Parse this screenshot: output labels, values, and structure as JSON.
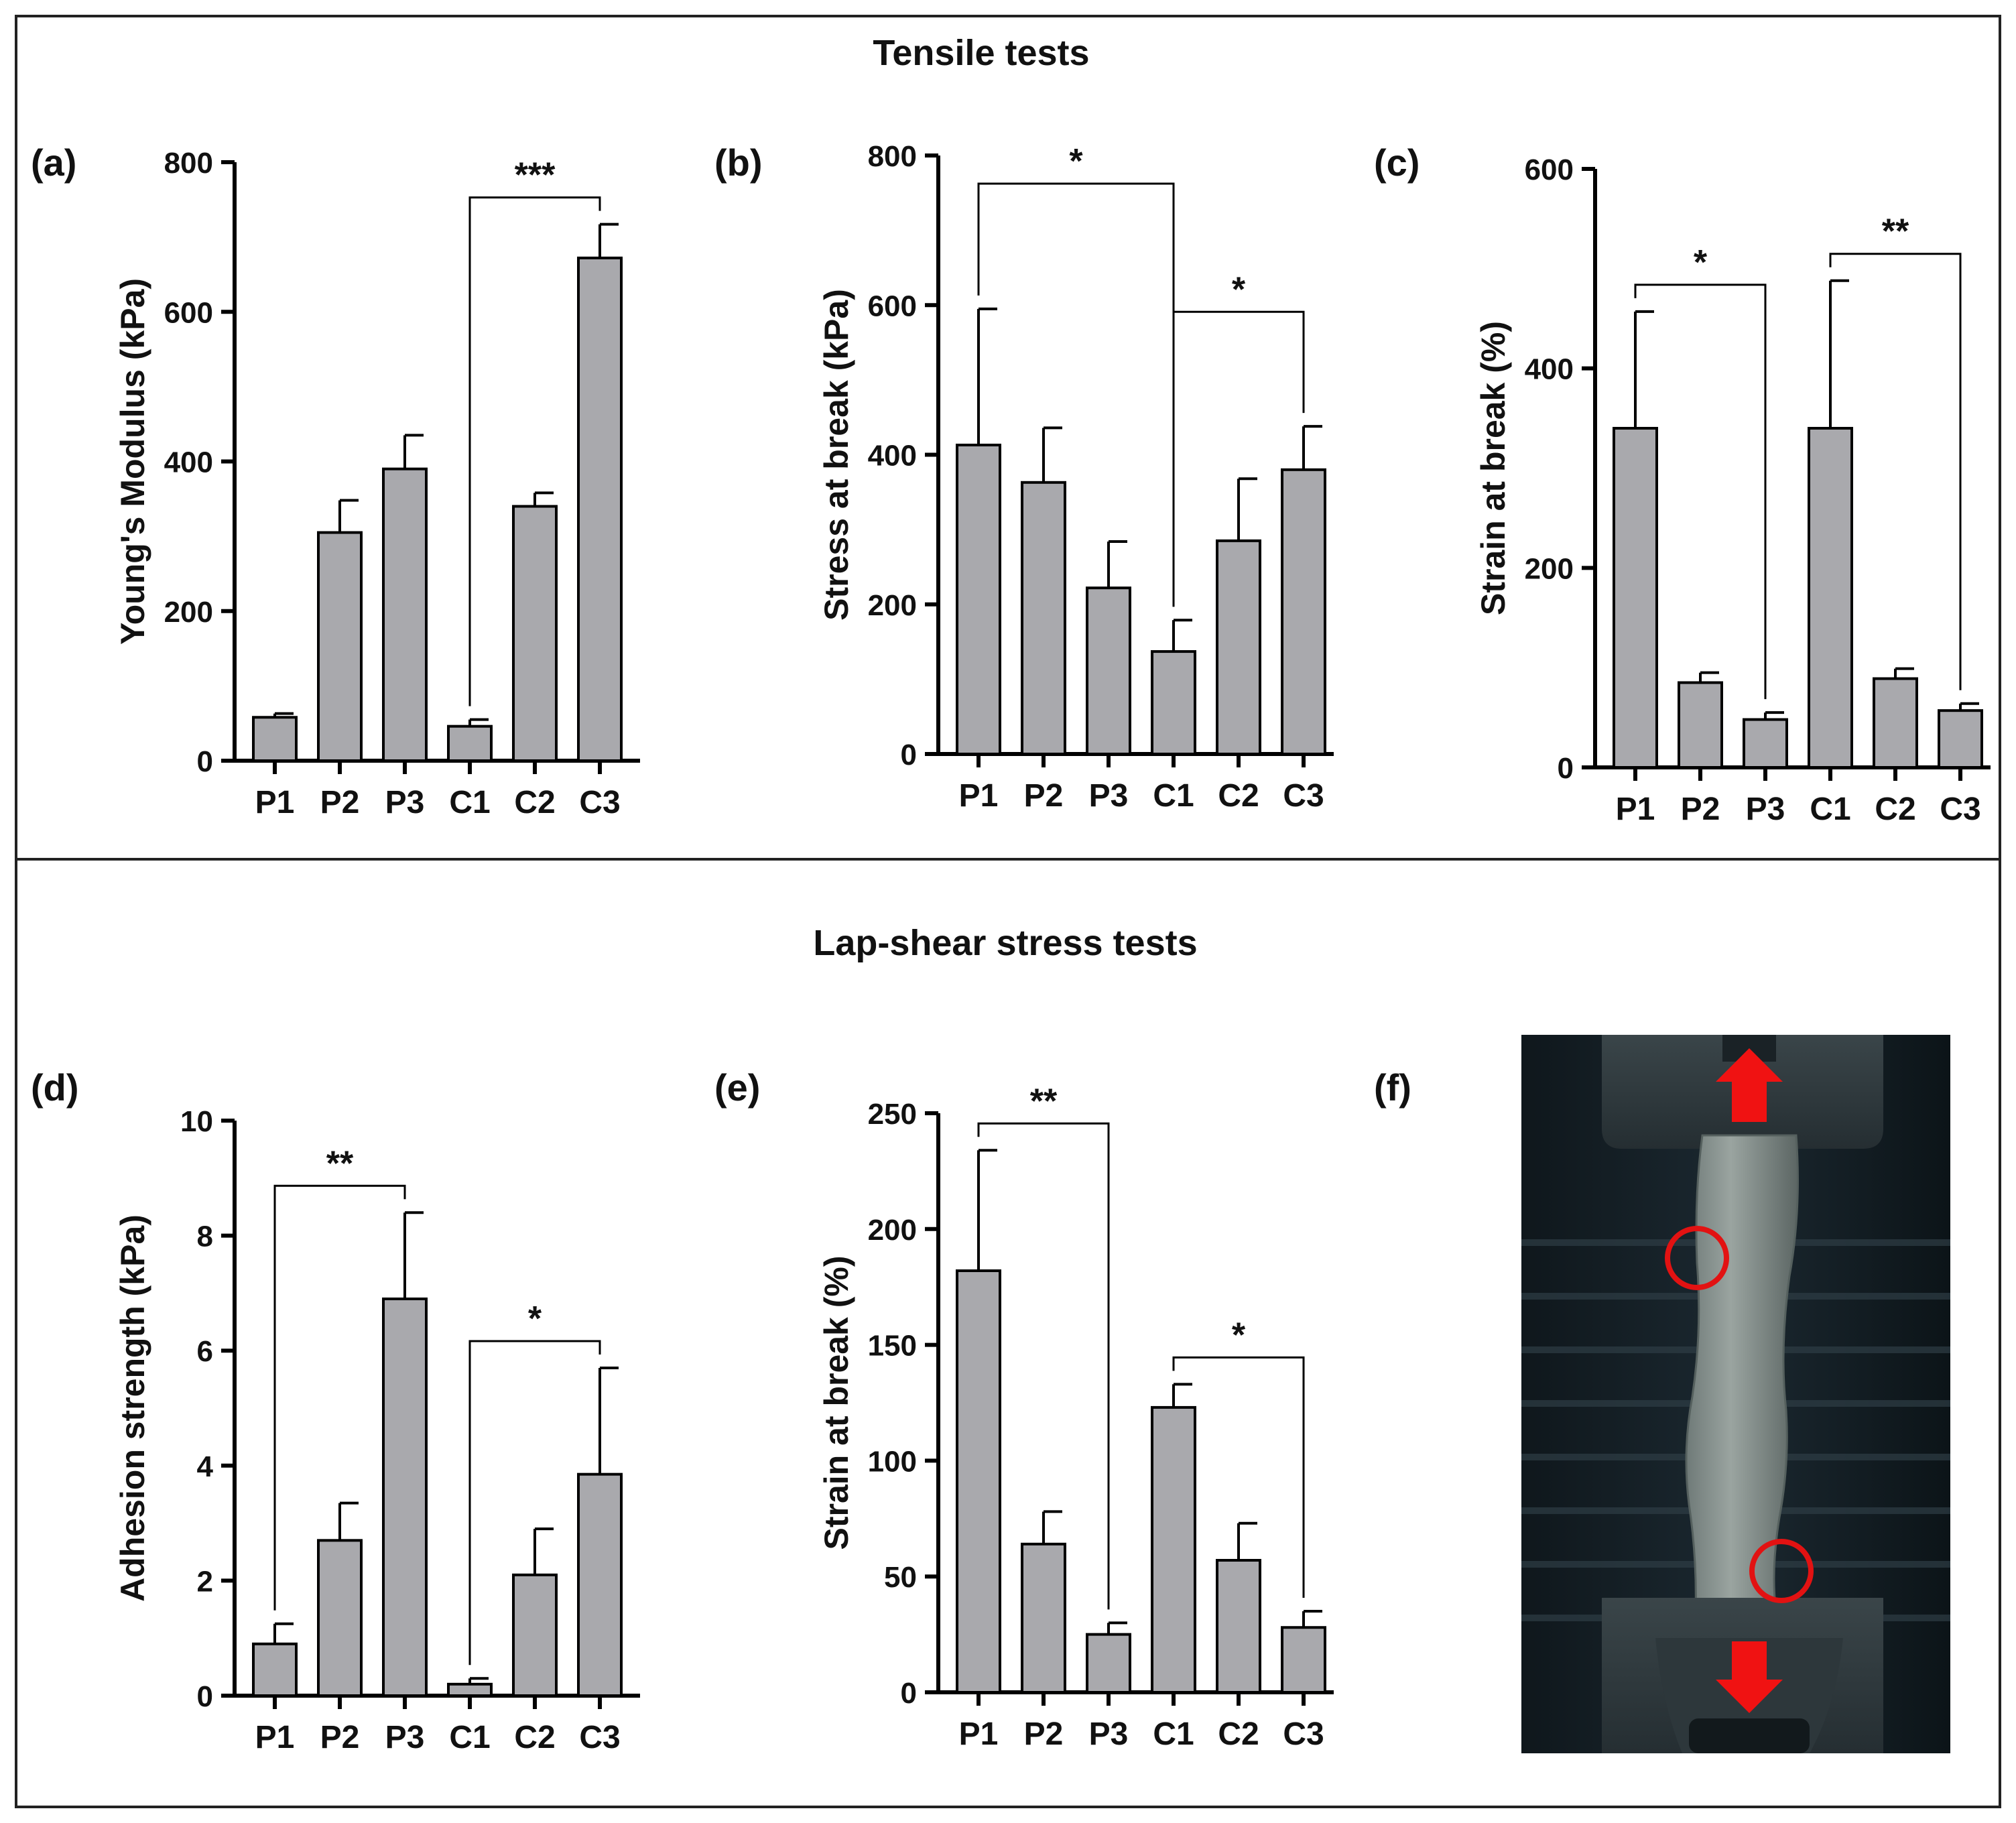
{
  "figure": {
    "sections": [
      {
        "title": "Tensile tests"
      },
      {
        "title": "Lap-shear stress tests"
      }
    ],
    "photo_panel": {
      "letter": "(f)"
    }
  },
  "chart_data": [
    {
      "panel": "(a)",
      "type": "bar",
      "title": "",
      "xlabel": "",
      "ylabel": "Young's Modulus (kPa)",
      "categories": [
        "P1",
        "P2",
        "P3",
        "C1",
        "C2",
        "C3"
      ],
      "values": [
        58,
        305,
        390,
        46,
        340,
        672
      ],
      "errors": [
        5,
        43,
        45,
        9,
        18,
        45
      ],
      "ylim": [
        0,
        800
      ],
      "yticks": [
        "0",
        "200",
        "400",
        "600",
        "800"
      ],
      "significance": [
        {
          "from": "C1",
          "to": "C3",
          "label": "***"
        }
      ],
      "bar_color": "#a9a9ad"
    },
    {
      "panel": "(b)",
      "type": "bar",
      "title": "",
      "xlabel": "",
      "ylabel": "Stress at break (kPa)",
      "categories": [
        "P1",
        "P2",
        "P3",
        "C1",
        "C2",
        "C3"
      ],
      "values": [
        413,
        363,
        222,
        137,
        285,
        380
      ],
      "errors": [
        182,
        73,
        62,
        42,
        83,
        58
      ],
      "ylim": [
        0,
        800
      ],
      "yticks": [
        "0",
        "200",
        "400",
        "600",
        "800"
      ],
      "significance": [
        {
          "from": "P1",
          "to": "C1",
          "label": "*"
        },
        {
          "from": "C1",
          "to": "C3",
          "label": "*"
        }
      ],
      "bar_color": "#a9a9ad"
    },
    {
      "panel": "(c)",
      "type": "bar",
      "title": "",
      "xlabel": "",
      "ylabel": "Strain at break (%)",
      "categories": [
        "P1",
        "P2",
        "P3",
        "C1",
        "C2",
        "C3"
      ],
      "values": [
        340,
        85,
        48,
        340,
        89,
        57
      ],
      "errors": [
        117,
        10,
        7,
        148,
        10,
        7
      ],
      "ylim": [
        0,
        600
      ],
      "yticks": [
        "0",
        "200",
        "400",
        "600"
      ],
      "significance": [
        {
          "from": "P1",
          "to": "P3",
          "label": "*"
        },
        {
          "from": "C1",
          "to": "C3",
          "label": "**"
        }
      ],
      "bar_color": "#a9a9ad"
    },
    {
      "panel": "(d)",
      "type": "bar",
      "title": "",
      "xlabel": "",
      "ylabel": "Adhesion strength (kPa)",
      "categories": [
        "P1",
        "P2",
        "P3",
        "C1",
        "C2",
        "C3"
      ],
      "values": [
        0.9,
        2.7,
        6.9,
        0.2,
        2.1,
        3.85
      ],
      "errors": [
        0.35,
        0.65,
        1.5,
        0.1,
        0.8,
        1.85
      ],
      "ylim": [
        0,
        10
      ],
      "yticks": [
        "0",
        "2",
        "4",
        "6",
        "8",
        "10"
      ],
      "significance": [
        {
          "from": "P1",
          "to": "P3",
          "label": "**"
        },
        {
          "from": "C1",
          "to": "C3",
          "label": "*"
        }
      ],
      "bar_color": "#a9a9ad"
    },
    {
      "panel": "(e)",
      "type": "bar",
      "title": "",
      "xlabel": "",
      "ylabel": "Strain at break (%)",
      "categories": [
        "P1",
        "P2",
        "P3",
        "C1",
        "C2",
        "C3"
      ],
      "values": [
        182,
        64,
        25,
        123,
        57,
        28
      ],
      "errors": [
        52,
        14,
        5,
        10,
        16,
        7
      ],
      "ylim": [
        0,
        250
      ],
      "yticks": [
        "0",
        "50",
        "100",
        "150",
        "200",
        "250"
      ],
      "significance": [
        {
          "from": "P1",
          "to": "P3",
          "label": "**"
        },
        {
          "from": "C1",
          "to": "C3",
          "label": "*"
        }
      ],
      "bar_color": "#a9a9ad"
    }
  ]
}
